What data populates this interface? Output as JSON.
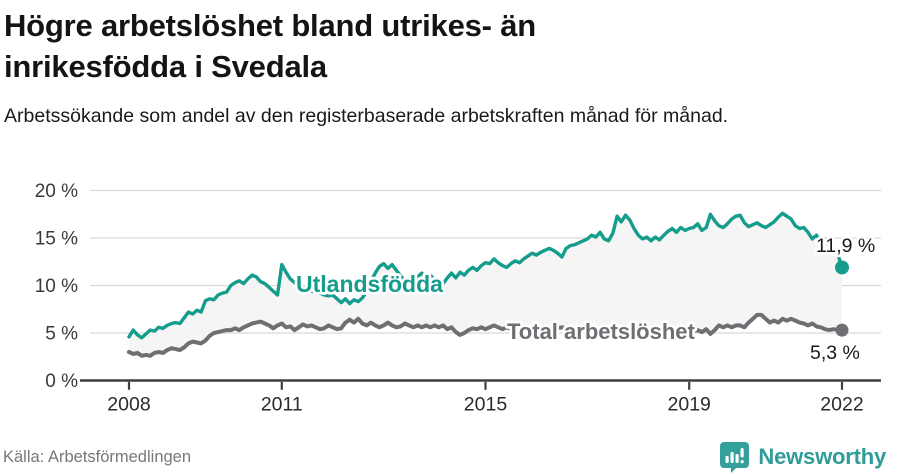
{
  "header": {
    "title": "Högre arbetslöshet bland utrikes- än inrikesfödda i Svedala",
    "subtitle": "Arbetssökande som andel av den registerbaserade arbetskraften månad för månad."
  },
  "footer": {
    "source": "Källa: Arbetsförmedlingen",
    "brand": "Newsworthy"
  },
  "colors": {
    "series_foreign": "#149c8c",
    "series_total": "#6e6e73",
    "grid": "#d9d9d9",
    "axis": "#3f3f3f",
    "tick_label": "#2b2b2b",
    "y_label": "#3a3a3a",
    "value_label": "#1a1a1a",
    "fill_between": "#f5f5f5",
    "brand_teal": "#35a09b"
  },
  "chart_data": {
    "type": "line",
    "title": "Högre arbetslöshet bland utrikes- än inrikesfödda i Svedala",
    "subtitle": "Arbetssökande som andel av den registerbaserade arbetskraften månad för månad.",
    "x_unit": "month",
    "x_start": "2008-01",
    "x_end": "2022-01",
    "x_tick_years": [
      2008,
      2011,
      2015,
      2019,
      2022
    ],
    "x_tick_labels": [
      "2008",
      "2011",
      "2015",
      "2019",
      "2022"
    ],
    "y_ticks": [
      0,
      5,
      10,
      15,
      20
    ],
    "y_tick_labels": [
      "0 %",
      "5 %",
      "10 %",
      "15 %",
      "20 %"
    ],
    "ylim": [
      0,
      21
    ],
    "grid": true,
    "legend_position": "inline",
    "series": [
      {
        "name": "Utlandsfödda",
        "end_label": "11,9 %",
        "end_value": 11.9,
        "values": [
          4.6,
          5.3,
          4.8,
          4.5,
          4.9,
          5.3,
          5.2,
          5.6,
          5.5,
          5.8,
          6.0,
          6.1,
          6.0,
          6.6,
          7.2,
          7.0,
          7.4,
          7.2,
          8.4,
          8.6,
          8.5,
          9.0,
          9.2,
          9.3,
          10.0,
          10.3,
          10.5,
          10.2,
          10.7,
          11.1,
          10.9,
          10.4,
          10.2,
          9.8,
          9.4,
          9.0,
          12.2,
          11.4,
          10.7,
          10.3,
          10.0,
          9.8,
          9.6,
          9.4,
          9.3,
          9.2,
          9.0,
          8.9,
          9.0,
          8.6,
          8.2,
          8.6,
          8.1,
          8.5,
          8.3,
          8.7,
          9.4,
          10.4,
          11.3,
          12.0,
          12.3,
          11.8,
          12.2,
          11.6,
          11.0,
          10.5,
          10.2,
          10.5,
          10.9,
          11.3,
          10.9,
          11.1,
          10.6,
          10.3,
          10.2,
          10.8,
          11.3,
          10.8,
          11.4,
          11.1,
          11.6,
          11.9,
          11.6,
          12.1,
          12.4,
          12.3,
          12.8,
          12.4,
          12.1,
          11.9,
          12.3,
          12.6,
          12.4,
          12.8,
          13.1,
          13.4,
          13.2,
          13.5,
          13.7,
          13.9,
          13.7,
          13.4,
          13.0,
          13.9,
          14.2,
          14.3,
          14.5,
          14.7,
          14.9,
          15.3,
          15.1,
          15.6,
          14.9,
          14.7,
          15.5,
          17.3,
          16.7,
          17.4,
          16.9,
          16.0,
          15.3,
          14.9,
          15.1,
          14.7,
          15.1,
          14.8,
          15.3,
          15.7,
          16.0,
          15.6,
          16.1,
          15.8,
          16.0,
          16.1,
          16.5,
          15.8,
          16.1,
          17.5,
          16.8,
          16.3,
          16.1,
          16.5,
          17.0,
          17.3,
          17.4,
          16.6,
          16.2,
          16.4,
          16.6,
          16.3,
          16.1,
          16.4,
          16.7,
          17.2,
          17.6,
          17.3,
          17.0,
          16.3,
          16.0,
          16.1,
          15.6,
          14.9,
          15.3,
          14.5,
          14.9,
          14.2,
          13.9,
          13.3,
          11.9
        ]
      },
      {
        "name": "Total arbetslöshet",
        "end_label": "5,3 %",
        "end_value": 5.3,
        "values": [
          3.0,
          2.8,
          2.9,
          2.6,
          2.7,
          2.6,
          2.9,
          3.0,
          2.9,
          3.2,
          3.4,
          3.3,
          3.2,
          3.5,
          3.9,
          4.1,
          4.0,
          3.9,
          4.2,
          4.7,
          5.0,
          5.1,
          5.2,
          5.3,
          5.3,
          5.5,
          5.3,
          5.6,
          5.8,
          6.0,
          6.1,
          6.2,
          6.0,
          5.8,
          5.5,
          5.8,
          6.0,
          5.6,
          5.7,
          5.3,
          5.6,
          5.9,
          5.7,
          5.8,
          5.6,
          5.4,
          5.5,
          5.8,
          5.6,
          5.4,
          5.5,
          6.1,
          6.4,
          6.1,
          6.5,
          6.0,
          5.8,
          6.1,
          5.8,
          5.6,
          5.8,
          6.1,
          5.8,
          5.6,
          5.7,
          6.0,
          5.8,
          5.6,
          5.8,
          5.6,
          5.8,
          5.6,
          5.8,
          5.6,
          5.8,
          5.4,
          5.6,
          5.1,
          4.8,
          5.0,
          5.3,
          5.5,
          5.4,
          5.6,
          5.4,
          5.6,
          5.8,
          5.6,
          5.4,
          5.6,
          5.4,
          5.6,
          5.5,
          5.6,
          5.4,
          5.5,
          5.4,
          5.6,
          5.4,
          5.6,
          5.4,
          5.5,
          5.6,
          5.5,
          5.4,
          5.5,
          5.3,
          5.5,
          5.4,
          5.5,
          5.3,
          5.4,
          5.5,
          5.3,
          5.4,
          5.6,
          5.4,
          5.3,
          5.5,
          5.4,
          5.3,
          5.4,
          5.2,
          5.3,
          5.4,
          5.3,
          5.2,
          5.4,
          5.3,
          5.4,
          5.3,
          5.4,
          5.3,
          5.2,
          5.3,
          5.1,
          5.4,
          4.9,
          5.3,
          5.8,
          5.6,
          5.8,
          5.6,
          5.8,
          5.8,
          5.6,
          6.1,
          6.5,
          6.9,
          6.9,
          6.5,
          6.1,
          6.3,
          6.1,
          6.5,
          6.3,
          6.5,
          6.3,
          6.1,
          6.0,
          5.8,
          6.0,
          5.7,
          5.6,
          5.4,
          5.3,
          5.4,
          5.3,
          5.3
        ]
      }
    ]
  }
}
